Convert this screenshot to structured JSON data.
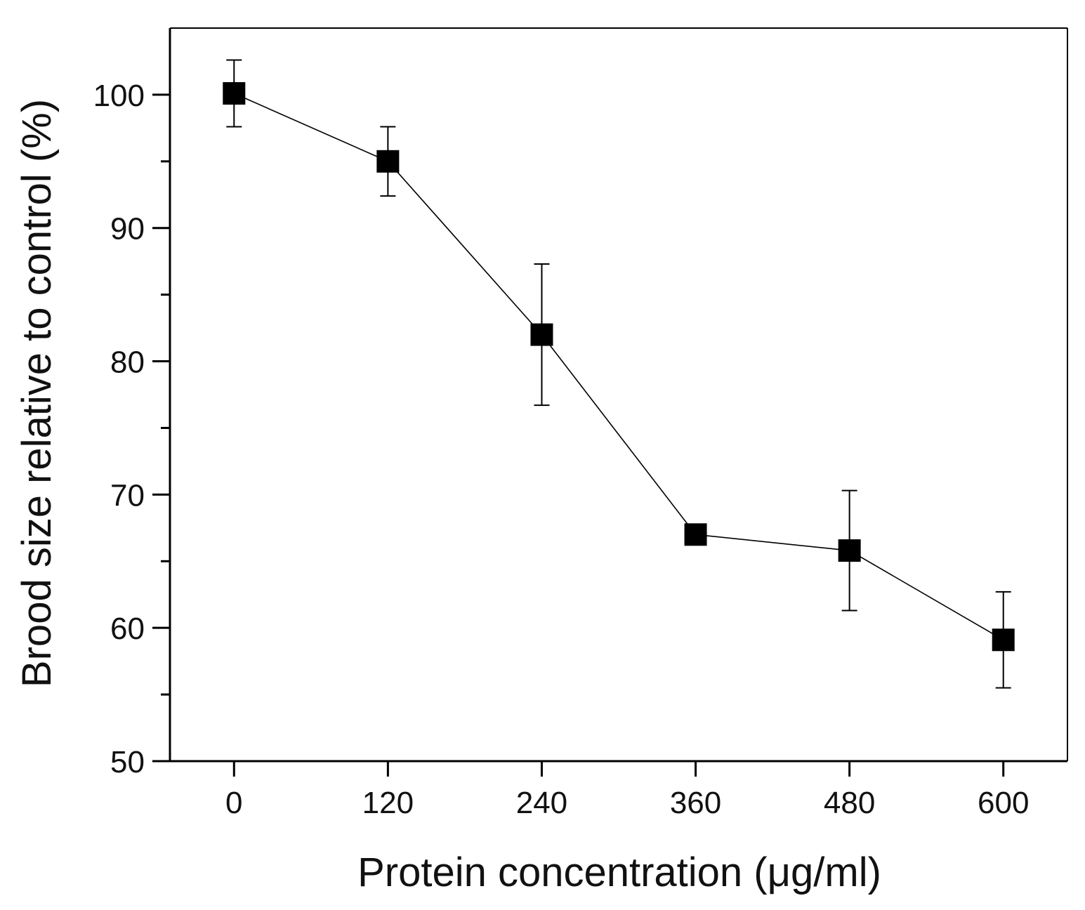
{
  "chart_data": {
    "type": "line",
    "title": "",
    "xlabel": "Protein concentration (μg/ml)",
    "ylabel": "Brood size relative to control (%)",
    "x": [
      0,
      120,
      240,
      360,
      480,
      600
    ],
    "xlim": [
      -50,
      650
    ],
    "ylim": [
      50,
      105
    ],
    "xticks": [
      0,
      120,
      240,
      360,
      480,
      600
    ],
    "xtick_labels": [
      "0",
      "120",
      "240",
      "360",
      "480",
      "600"
    ],
    "yticks": [
      50,
      60,
      70,
      80,
      90,
      100
    ],
    "ytick_labels": [
      "50",
      "60",
      "70",
      "80",
      "90",
      "100"
    ],
    "yminor_ticks": [
      55,
      65,
      75,
      85,
      95
    ],
    "grid": false,
    "series": [
      {
        "name": "Brood size",
        "marker": "square",
        "values": [
          100.1,
          95.0,
          82.0,
          67.0,
          65.8,
          59.1
        ],
        "error": [
          2.5,
          2.6,
          5.3,
          0.0,
          4.5,
          3.6
        ]
      }
    ],
    "colors": {
      "marker": "#000000",
      "line": "#000000",
      "axis": "#000000"
    }
  }
}
